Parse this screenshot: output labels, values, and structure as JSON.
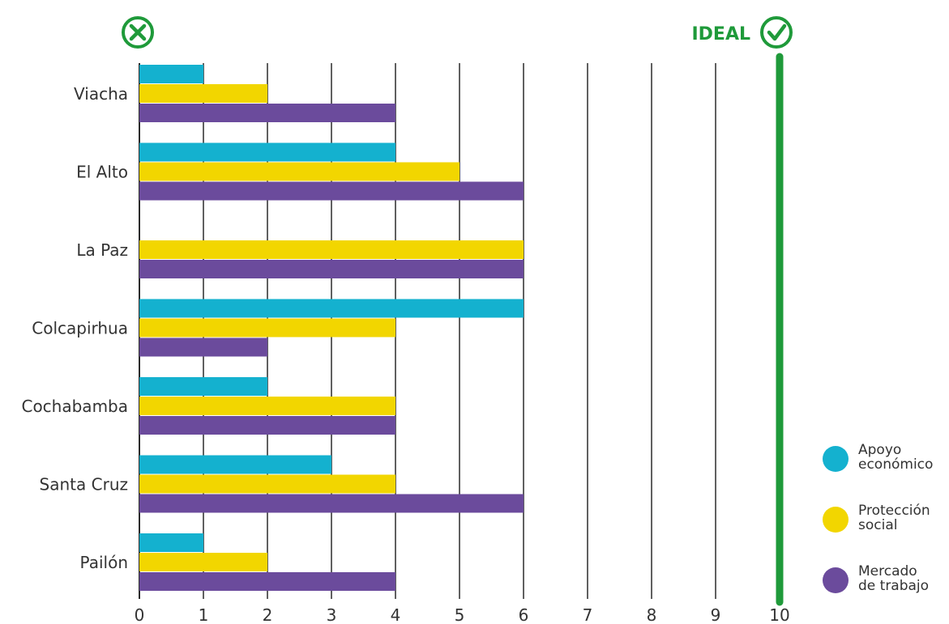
{
  "chart_data": {
    "type": "bar",
    "orientation": "horizontal",
    "categories": [
      "Viacha",
      "El Alto",
      "La Paz",
      "Colcapirhua",
      "Cochabamba",
      "Santa Cruz",
      "Pailón"
    ],
    "series": [
      {
        "name": "Apoyo económico",
        "values": [
          1,
          4,
          0,
          6,
          2,
          3,
          1
        ],
        "color": "#14b1cf"
      },
      {
        "name": "Protección social",
        "values": [
          2,
          5,
          6,
          4,
          4,
          4,
          2
        ],
        "color": "#f2d600"
      },
      {
        "name": "Mercado de trabajo",
        "values": [
          4,
          6,
          6,
          2,
          4,
          6,
          4
        ],
        "color": "#6b4b9c"
      }
    ],
    "xlim": [
      0,
      10
    ],
    "xticks": [
      "0",
      "1",
      "2",
      "3",
      "4",
      "5",
      "6",
      "7",
      "8",
      "9",
      "10"
    ],
    "grid": true,
    "ideal_value": 10,
    "ideal_label": "IDEAL",
    "ideal_color": "#1f9a3a",
    "legend_position": "bottom-right",
    "legend": [
      {
        "lines": [
          "Apoyo",
          "económico"
        ],
        "color": "#14b1cf"
      },
      {
        "lines": [
          "Protección",
          "social"
        ],
        "color": "#f2d600"
      },
      {
        "lines": [
          "Mercado",
          "de trabajo"
        ],
        "color": "#6b4b9c"
      }
    ],
    "icons": {
      "left": "cross-circle-icon",
      "right": "check-circle-icon"
    }
  }
}
